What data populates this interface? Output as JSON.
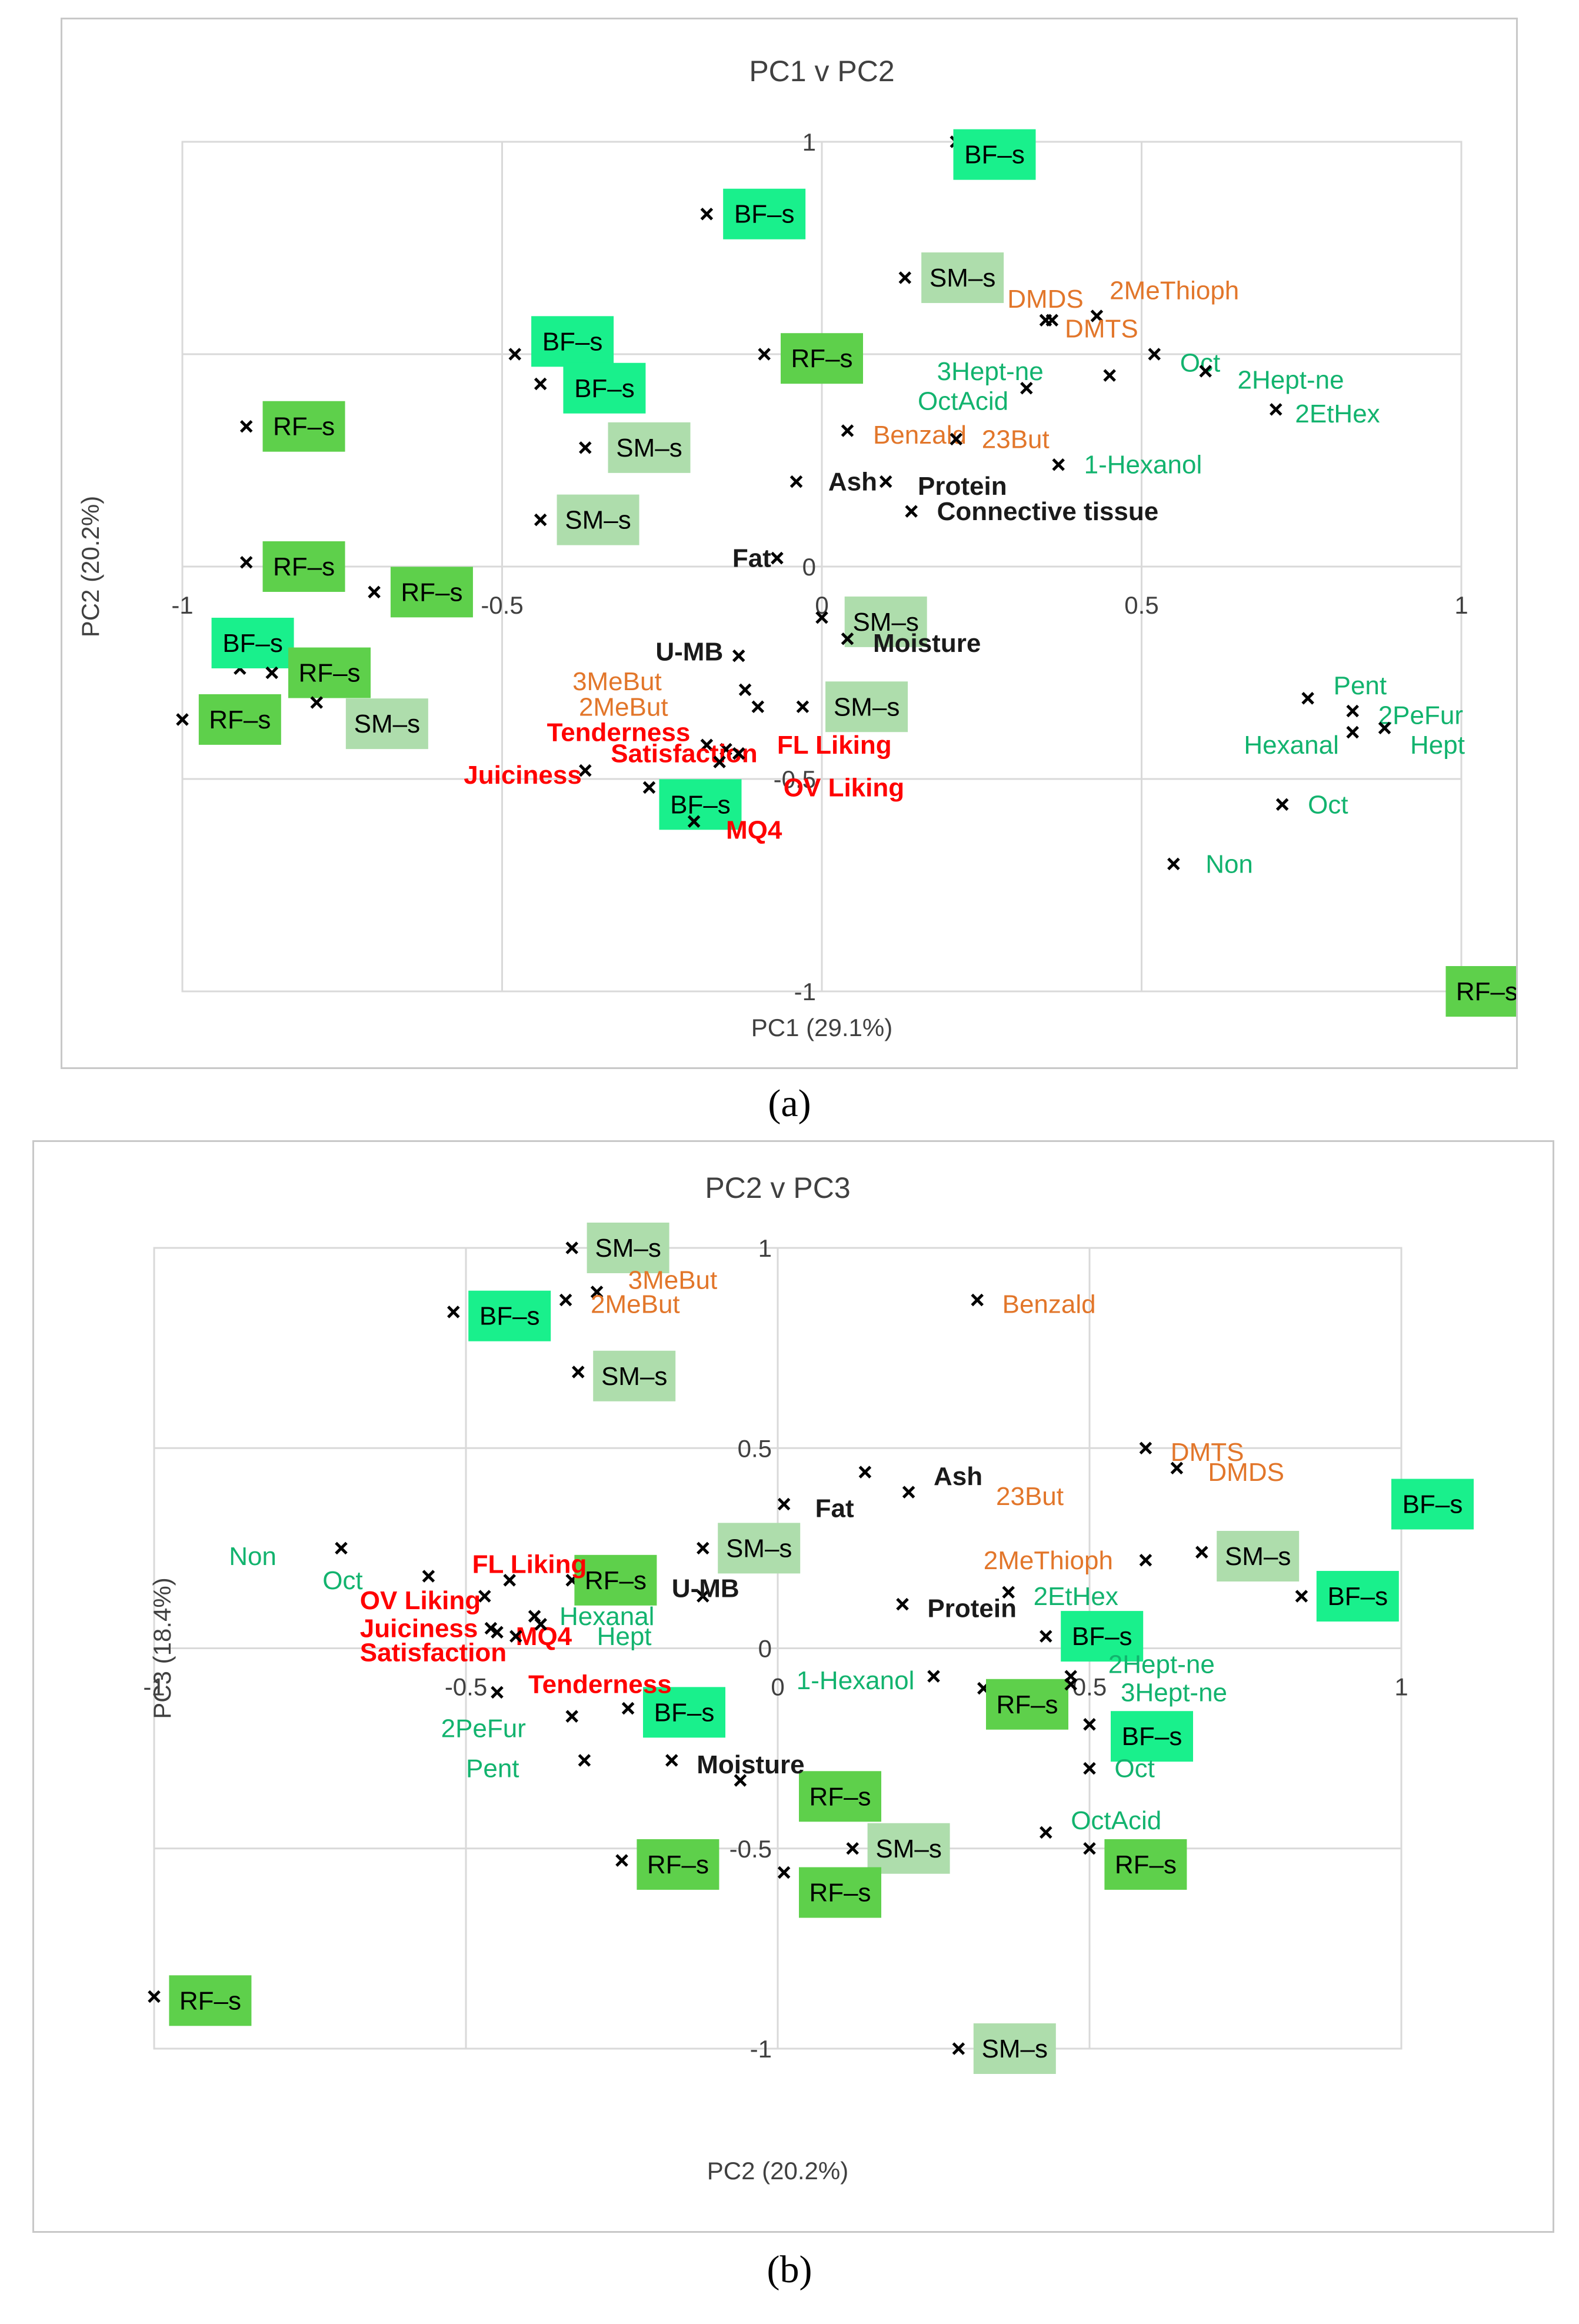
{
  "colors": {
    "BF": "#19f08c",
    "RF": "#5ed04b",
    "SM": "#aeddac",
    "green_text": "#12b36e",
    "orange_text": "#e2762a",
    "red_text": "#ff0000",
    "black_text": "#1a1a1a",
    "grid": "#d9d9d9"
  },
  "captions": {
    "a": "(a)",
    "b": "(b)"
  },
  "chart_data": [
    {
      "type": "scatter",
      "title": "PC1 v PC2",
      "xlabel": "PC1 (29.1%)",
      "ylabel": "PC2 (20.2%)",
      "xlim": [
        -1,
        1
      ],
      "ylim": [
        -1,
        1
      ],
      "xticks": [
        "-1",
        "-0.5",
        "0",
        "0.5",
        "1"
      ],
      "yticks": [
        "1",
        "0.5",
        "0",
        "-0.5",
        "-1"
      ],
      "grid": true,
      "points": [
        {
          "label": "BF–s",
          "x": 0.21,
          "y": 1.0,
          "kind": "BF",
          "lx": 0.27,
          "ly": 0.97
        },
        {
          "label": "BF–s",
          "x": -0.18,
          "y": 0.83,
          "kind": "BF",
          "lx": -0.09,
          "ly": 0.83
        },
        {
          "label": "SM–s",
          "x": 0.13,
          "y": 0.68,
          "kind": "SM",
          "lx": 0.22,
          "ly": 0.68
        },
        {
          "label": "BF–s",
          "x": -0.48,
          "y": 0.5,
          "kind": "BF",
          "lx": -0.39,
          "ly": 0.53
        },
        {
          "label": "RF–s",
          "x": -0.09,
          "y": 0.5,
          "kind": "RF",
          "lx": 0.0,
          "ly": 0.49
        },
        {
          "label": "BF–s",
          "x": -0.44,
          "y": 0.43,
          "kind": "BF",
          "lx": -0.34,
          "ly": 0.42
        },
        {
          "label": "RF–s",
          "x": -0.9,
          "y": 0.33,
          "kind": "RF",
          "lx": -0.81,
          "ly": 0.33
        },
        {
          "label": "SM–s",
          "x": -0.37,
          "y": 0.28,
          "kind": "SM",
          "lx": -0.27,
          "ly": 0.28
        },
        {
          "label": "SM–s",
          "x": -0.44,
          "y": 0.11,
          "kind": "SM",
          "lx": -0.35,
          "ly": 0.11
        },
        {
          "label": "RF–s",
          "x": -0.9,
          "y": 0.01,
          "kind": "RF",
          "lx": -0.81,
          "ly": 0.0
        },
        {
          "label": "RF–s",
          "x": -0.7,
          "y": -0.06,
          "kind": "RF",
          "lx": -0.61,
          "ly": -0.06
        },
        {
          "label": "SM–s",
          "x": 0.0,
          "y": -0.12,
          "kind": "SM",
          "lx": 0.1,
          "ly": -0.13
        },
        {
          "label": "BF–s",
          "x": -0.91,
          "y": -0.24,
          "kind": "BF",
          "lx": -0.89,
          "ly": -0.18
        },
        {
          "label": "RF–s",
          "x": -0.86,
          "y": -0.25,
          "kind": "RF",
          "lx": -0.77,
          "ly": -0.25
        },
        {
          "label": "RF–s",
          "x": -1.0,
          "y": -0.36,
          "kind": "RF",
          "lx": -0.91,
          "ly": -0.36
        },
        {
          "label": "SM–s",
          "x": -0.79,
          "y": -0.32,
          "kind": "SM",
          "lx": -0.68,
          "ly": -0.37
        },
        {
          "label": "SM–s",
          "x": -0.03,
          "y": -0.33,
          "kind": "SM",
          "lx": 0.07,
          "ly": -0.33
        },
        {
          "label": "BF–s",
          "x": -0.27,
          "y": -0.52,
          "kind": "BF",
          "lx": -0.19,
          "ly": -0.56
        },
        {
          "label": "RF–s",
          "x": 1.0,
          "y": -1.0,
          "kind": "RF",
          "lx": 1.04,
          "ly": -1.0
        }
      ],
      "variables": [
        {
          "label": "DMDS",
          "x": 0.35,
          "y": 0.58,
          "color": "orange",
          "bold": false,
          "lx": 0.29,
          "ly": 0.63
        },
        {
          "label": "2MeThioph",
          "x": 0.43,
          "y": 0.59,
          "color": "orange",
          "bold": false,
          "lx": 0.45,
          "ly": 0.65
        },
        {
          "label": "DMTS",
          "x": 0.36,
          "y": 0.58,
          "color": "orange",
          "bold": false,
          "lx": 0.38,
          "ly": 0.56
        },
        {
          "label": "Oct",
          "x": 0.52,
          "y": 0.5,
          "color": "green",
          "bold": false,
          "lx": 0.56,
          "ly": 0.48
        },
        {
          "label": "3Hept-ne",
          "x": 0.45,
          "y": 0.45,
          "color": "green",
          "bold": false,
          "lx": 0.18,
          "ly": 0.46
        },
        {
          "label": "2Hept-ne",
          "x": 0.6,
          "y": 0.46,
          "color": "green",
          "bold": false,
          "lx": 0.65,
          "ly": 0.44
        },
        {
          "label": "OctAcid",
          "x": 0.32,
          "y": 0.42,
          "color": "green",
          "bold": false,
          "lx": 0.15,
          "ly": 0.39
        },
        {
          "label": "2EtHex",
          "x": 0.71,
          "y": 0.37,
          "color": "green",
          "bold": false,
          "lx": 0.74,
          "ly": 0.36
        },
        {
          "label": "Benzald",
          "x": 0.04,
          "y": 0.32,
          "color": "orange",
          "bold": false,
          "lx": 0.08,
          "ly": 0.31
        },
        {
          "label": "23But",
          "x": 0.21,
          "y": 0.3,
          "color": "orange",
          "bold": false,
          "lx": 0.25,
          "ly": 0.3
        },
        {
          "label": "1-Hexanol",
          "x": 0.37,
          "y": 0.24,
          "color": "green",
          "bold": false,
          "lx": 0.41,
          "ly": 0.24
        },
        {
          "label": "Ash",
          "x": -0.04,
          "y": 0.2,
          "color": "black",
          "bold": true,
          "lx": 0.01,
          "ly": 0.2
        },
        {
          "label": "Protein",
          "x": 0.1,
          "y": 0.2,
          "color": "black",
          "bold": true,
          "lx": 0.15,
          "ly": 0.19
        },
        {
          "label": "Connective tissue",
          "x": 0.14,
          "y": 0.13,
          "color": "black",
          "bold": true,
          "lx": 0.18,
          "ly": 0.13
        },
        {
          "label": "Fat",
          "x": -0.07,
          "y": 0.02,
          "color": "black",
          "bold": true,
          "lx": -0.14,
          "ly": 0.02
        },
        {
          "label": "Moisture",
          "x": 0.04,
          "y": -0.17,
          "color": "black",
          "bold": true,
          "lx": 0.08,
          "ly": -0.18
        },
        {
          "label": "U-MB",
          "x": -0.13,
          "y": -0.21,
          "color": "black",
          "bold": true,
          "lx": -0.26,
          "ly": -0.2
        },
        {
          "label": "3MeBut",
          "x": -0.12,
          "y": -0.29,
          "color": "orange",
          "bold": false,
          "lx": -0.39,
          "ly": -0.27
        },
        {
          "label": "2MeBut",
          "x": -0.1,
          "y": -0.33,
          "color": "orange",
          "bold": false,
          "lx": -0.38,
          "ly": -0.33
        },
        {
          "label": "Tenderness",
          "x": -0.18,
          "y": -0.42,
          "color": "red",
          "bold": true,
          "lx": -0.43,
          "ly": -0.39
        },
        {
          "label": "Satisfaction",
          "x": -0.15,
          "y": -0.43,
          "color": "red",
          "bold": true,
          "lx": -0.33,
          "ly": -0.44
        },
        {
          "label": "FL Liking",
          "x": -0.13,
          "y": -0.44,
          "color": "red",
          "bold": true,
          "lx": -0.07,
          "ly": -0.42
        },
        {
          "label": "Juiciness",
          "x": -0.37,
          "y": -0.48,
          "color": "red",
          "bold": true,
          "lx": -0.56,
          "ly": -0.49
        },
        {
          "label": "OV Liking",
          "x": -0.16,
          "y": -0.46,
          "color": "red",
          "bold": true,
          "lx": -0.06,
          "ly": -0.52
        },
        {
          "label": "MQ4",
          "x": -0.2,
          "y": -0.6,
          "color": "red",
          "bold": true,
          "lx": -0.15,
          "ly": -0.62
        },
        {
          "label": "Pent",
          "x": 0.76,
          "y": -0.31,
          "color": "green",
          "bold": false,
          "lx": 0.8,
          "ly": -0.28
        },
        {
          "label": "2PeFur",
          "x": 0.83,
          "y": -0.34,
          "color": "green",
          "bold": false,
          "lx": 0.87,
          "ly": -0.35
        },
        {
          "label": "Hexanal",
          "x": 0.83,
          "y": -0.39,
          "color": "green",
          "bold": false,
          "lx": 0.66,
          "ly": -0.42
        },
        {
          "label": "Hept",
          "x": 0.88,
          "y": -0.38,
          "color": "green",
          "bold": false,
          "lx": 0.92,
          "ly": -0.42
        },
        {
          "label": "Oct",
          "x": 0.72,
          "y": -0.56,
          "color": "green",
          "bold": false,
          "lx": 0.76,
          "ly": -0.56
        },
        {
          "label": "Non",
          "x": 0.55,
          "y": -0.7,
          "color": "green",
          "bold": false,
          "lx": 0.6,
          "ly": -0.7
        }
      ]
    },
    {
      "type": "scatter",
      "title": "PC2 v PC3",
      "xlabel": "PC2 (20.2%)",
      "ylabel": "PC3 (18.4%)",
      "xlim": [
        -1,
        1
      ],
      "ylim": [
        -1,
        1
      ],
      "xticks": [
        "-1",
        "-0.5",
        "0",
        "0.5",
        "1"
      ],
      "yticks": [
        "1",
        "0.5",
        "0",
        "-0.5",
        "-1"
      ],
      "grid": true,
      "points": [
        {
          "label": "SM–s",
          "x": -0.33,
          "y": 1.0,
          "kind": "SM",
          "lx": -0.24,
          "ly": 1.0
        },
        {
          "label": "BF–s",
          "x": -0.52,
          "y": 0.84,
          "kind": "BF",
          "lx": -0.43,
          "ly": 0.83
        },
        {
          "label": "SM–s",
          "x": -0.32,
          "y": 0.69,
          "kind": "SM",
          "lx": -0.23,
          "ly": 0.68
        },
        {
          "label": "SM–s",
          "x": -0.12,
          "y": 0.25,
          "kind": "SM",
          "lx": -0.03,
          "ly": 0.25
        },
        {
          "label": "RF–s",
          "x": -0.33,
          "y": 0.17,
          "kind": "RF",
          "lx": -0.26,
          "ly": 0.17
        },
        {
          "label": "SM–s",
          "x": 0.68,
          "y": 0.24,
          "kind": "SM",
          "lx": 0.77,
          "ly": 0.23
        },
        {
          "label": "BF–s",
          "x": 0.84,
          "y": 0.13,
          "kind": "BF",
          "lx": 0.93,
          "ly": 0.13
        },
        {
          "label": "BF–s",
          "x": 1.0,
          "y": 0.38,
          "kind": "BF",
          "lx": 1.05,
          "ly": 0.36
        },
        {
          "label": "BF–s",
          "x": 0.43,
          "y": 0.03,
          "kind": "BF",
          "lx": 0.52,
          "ly": 0.03
        },
        {
          "label": "RF–s",
          "x": 0.33,
          "y": -0.1,
          "kind": "RF",
          "lx": 0.4,
          "ly": -0.14
        },
        {
          "label": "BF–s",
          "x": -0.24,
          "y": -0.15,
          "kind": "BF",
          "lx": -0.15,
          "ly": -0.16
        },
        {
          "label": "BF–s",
          "x": 0.5,
          "y": -0.19,
          "kind": "BF",
          "lx": 0.6,
          "ly": -0.22
        },
        {
          "label": "RF–s",
          "x": -0.06,
          "y": -0.33,
          "kind": "RF",
          "lx": 0.1,
          "ly": -0.37
        },
        {
          "label": "SM–s",
          "x": 0.12,
          "y": -0.5,
          "kind": "SM",
          "lx": 0.21,
          "ly": -0.5
        },
        {
          "label": "RF–s",
          "x": 0.5,
          "y": -0.5,
          "kind": "RF",
          "lx": 0.59,
          "ly": -0.54
        },
        {
          "label": "RF–s",
          "x": -0.25,
          "y": -0.53,
          "kind": "RF",
          "lx": -0.16,
          "ly": -0.54
        },
        {
          "label": "RF–s",
          "x": 0.01,
          "y": -0.56,
          "kind": "RF",
          "lx": 0.1,
          "ly": -0.61
        },
        {
          "label": "RF–s",
          "x": -1.0,
          "y": -0.87,
          "kind": "RF",
          "lx": -0.91,
          "ly": -0.88
        },
        {
          "label": "SM–s",
          "x": 0.29,
          "y": -1.0,
          "kind": "SM",
          "lx": 0.38,
          "ly": -1.0
        }
      ],
      "variables": [
        {
          "label": "3MeBut",
          "x": -0.29,
          "y": 0.89,
          "color": "orange",
          "bold": false,
          "lx": -0.24,
          "ly": 0.92
        },
        {
          "label": "2MeBut",
          "x": -0.34,
          "y": 0.87,
          "color": "orange",
          "bold": false,
          "lx": -0.3,
          "ly": 0.86
        },
        {
          "label": "Benzald",
          "x": 0.32,
          "y": 0.87,
          "color": "orange",
          "bold": false,
          "lx": 0.36,
          "ly": 0.86
        },
        {
          "label": "DMTS",
          "x": 0.59,
          "y": 0.5,
          "color": "orange",
          "bold": false,
          "lx": 0.63,
          "ly": 0.49
        },
        {
          "label": "DMDS",
          "x": 0.64,
          "y": 0.45,
          "color": "orange",
          "bold": false,
          "lx": 0.69,
          "ly": 0.44
        },
        {
          "label": "Ash",
          "x": 0.14,
          "y": 0.44,
          "color": "black",
          "bold": true,
          "lx": 0.25,
          "ly": 0.43
        },
        {
          "label": "23But",
          "x": 0.21,
          "y": 0.39,
          "color": "orange",
          "bold": false,
          "lx": 0.35,
          "ly": 0.38
        },
        {
          "label": "Fat",
          "x": 0.01,
          "y": 0.36,
          "color": "black",
          "bold": true,
          "lx": 0.06,
          "ly": 0.35
        },
        {
          "label": "Non",
          "x": -0.7,
          "y": 0.25,
          "color": "green",
          "bold": false,
          "lx": -0.88,
          "ly": 0.23
        },
        {
          "label": "Oct",
          "x": -0.56,
          "y": 0.18,
          "color": "green",
          "bold": false,
          "lx": -0.73,
          "ly": 0.17
        },
        {
          "label": "FL Liking",
          "x": -0.43,
          "y": 0.17,
          "color": "red",
          "bold": true,
          "lx": -0.49,
          "ly": 0.21
        },
        {
          "label": "2MeThioph",
          "x": 0.59,
          "y": 0.22,
          "color": "orange",
          "bold": false,
          "lx": 0.33,
          "ly": 0.22
        },
        {
          "label": "U-MB",
          "x": -0.12,
          "y": 0.13,
          "color": "black",
          "bold": true,
          "lx": -0.17,
          "ly": 0.15
        },
        {
          "label": "OV Liking",
          "x": -0.47,
          "y": 0.13,
          "color": "red",
          "bold": true,
          "lx": -0.67,
          "ly": 0.12
        },
        {
          "label": "Hexanal",
          "x": -0.39,
          "y": 0.08,
          "color": "green",
          "bold": false,
          "lx": -0.35,
          "ly": 0.08
        },
        {
          "label": "2EtHex",
          "x": 0.37,
          "y": 0.14,
          "color": "green",
          "bold": false,
          "lx": 0.41,
          "ly": 0.13
        },
        {
          "label": "Protein",
          "x": 0.2,
          "y": 0.11,
          "color": "black",
          "bold": true,
          "lx": 0.24,
          "ly": 0.1
        },
        {
          "label": "Juiciness",
          "x": -0.46,
          "y": 0.05,
          "color": "red",
          "bold": true,
          "lx": -0.67,
          "ly": 0.05
        },
        {
          "label": "MQ4",
          "x": -0.45,
          "y": 0.04,
          "color": "red",
          "bold": true,
          "lx": -0.42,
          "ly": 0.03
        },
        {
          "label": "Hept",
          "x": -0.38,
          "y": 0.06,
          "color": "green",
          "bold": false,
          "lx": -0.29,
          "ly": 0.03
        },
        {
          "label": "Satisfaction",
          "x": -0.42,
          "y": 0.03,
          "color": "red",
          "bold": true,
          "lx": -0.67,
          "ly": -0.01
        },
        {
          "label": "2Hept-ne",
          "x": 0.47,
          "y": -0.07,
          "color": "green",
          "bold": false,
          "lx": 0.53,
          "ly": -0.04
        },
        {
          "label": "1-Hexanol",
          "x": 0.25,
          "y": -0.07,
          "color": "green",
          "bold": false,
          "lx": 0.03,
          "ly": -0.08
        },
        {
          "label": "3Hept-ne",
          "x": 0.47,
          "y": -0.09,
          "color": "green",
          "bold": false,
          "lx": 0.55,
          "ly": -0.11
        },
        {
          "label": "Tenderness",
          "x": -0.45,
          "y": -0.11,
          "color": "red",
          "bold": true,
          "lx": -0.4,
          "ly": -0.09
        },
        {
          "label": "2PeFur",
          "x": -0.33,
          "y": -0.17,
          "color": "green",
          "bold": false,
          "lx": -0.54,
          "ly": -0.2
        },
        {
          "label": "Pent",
          "x": -0.31,
          "y": -0.28,
          "color": "green",
          "bold": false,
          "lx": -0.5,
          "ly": -0.3
        },
        {
          "label": "Moisture",
          "x": -0.17,
          "y": -0.28,
          "color": "black",
          "bold": true,
          "lx": -0.13,
          "ly": -0.29
        },
        {
          "label": "Oct",
          "x": 0.5,
          "y": -0.3,
          "color": "green",
          "bold": false,
          "lx": 0.54,
          "ly": -0.3
        },
        {
          "label": "OctAcid",
          "x": 0.43,
          "y": -0.46,
          "color": "green",
          "bold": false,
          "lx": 0.47,
          "ly": -0.43
        }
      ]
    }
  ]
}
